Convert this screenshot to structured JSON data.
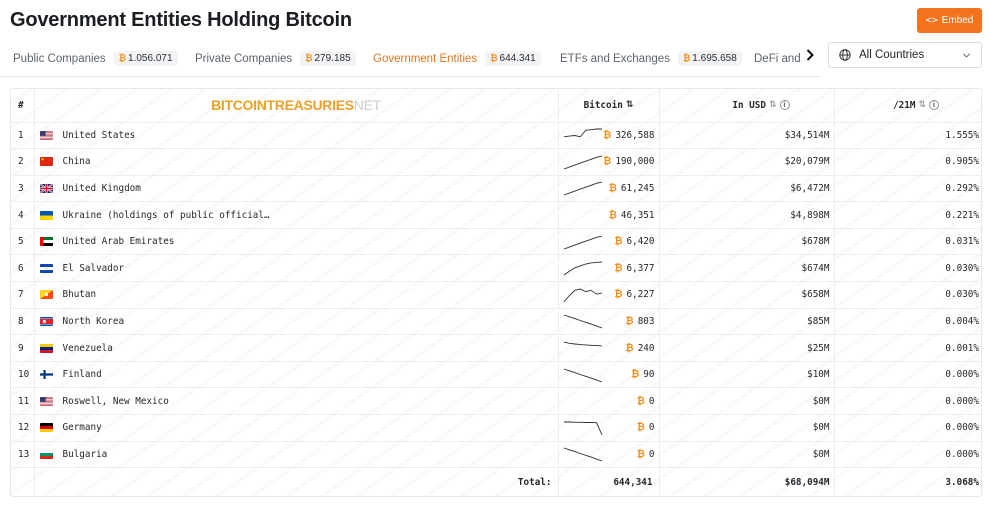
{
  "header": {
    "title": "Government Entities Holding Bitcoin",
    "embed_label": "Embed",
    "embed_icon": "code-icon"
  },
  "tabs": [
    {
      "label": "Public Companies",
      "value": "1.056.071"
    },
    {
      "label": "Private Companies",
      "value": "279.185"
    },
    {
      "label": "Government Entities",
      "value": "644.341",
      "active": true
    },
    {
      "label": "ETFs and Exchanges",
      "value": "1.695.658"
    },
    {
      "label": "DeFi and O",
      "value": ""
    }
  ],
  "country_filter": {
    "selected": "All Countries"
  },
  "table": {
    "logo": {
      "part1": "BITCOIN",
      "part2": "TREASURIES",
      "part3": "NET"
    },
    "columns": {
      "rank": "#",
      "bitcoin": "Bitcoin",
      "usd": "In USD",
      "share": "/21M"
    },
    "rows": [
      {
        "rank": "1",
        "name": "United States",
        "flag": "us",
        "btc": "326,588",
        "usd": "$34,514M",
        "share": "1.555%",
        "trend": [
          4,
          4.5,
          5,
          4,
          9,
          9.5,
          10,
          10
        ],
        "colors": [
          "#b22234",
          "#ffffff",
          "#3c3b6e"
        ]
      },
      {
        "rank": "2",
        "name": "China",
        "flag": "cn",
        "btc": "190,000",
        "usd": "$20,079M",
        "share": "0.905%",
        "trend": [
          0,
          1.5,
          3,
          4.5,
          6,
          7.5,
          9,
          10
        ],
        "colors": [
          "#de2910",
          "#ffde00"
        ]
      },
      {
        "rank": "3",
        "name": "United Kingdom",
        "flag": "gb",
        "btc": "61,245",
        "usd": "$6,472M",
        "share": "0.292%",
        "trend": [
          0,
          1.5,
          3,
          4.5,
          6,
          7.5,
          9,
          10
        ],
        "colors": [
          "#012169",
          "#ffffff",
          "#c8102e"
        ]
      },
      {
        "rank": "4",
        "name": "Ukraine (holdings of public official…",
        "flag": "ua",
        "btc": "46,351",
        "usd": "$4,898M",
        "share": "0.221%",
        "trend": [],
        "colors": [
          "#0057b7",
          "#ffd700"
        ]
      },
      {
        "rank": "5",
        "name": "United Arab Emirates",
        "flag": "ae",
        "btc": "6,420",
        "usd": "$678M",
        "share": "0.031%",
        "trend": [
          0,
          1.5,
          3,
          4.5,
          6,
          7.5,
          9,
          10
        ],
        "colors": [
          "#00732f",
          "#ffffff",
          "#000000",
          "#ff0000"
        ]
      },
      {
        "rank": "6",
        "name": "El Salvador",
        "flag": "sv",
        "btc": "6,377",
        "usd": "$674M",
        "share": "0.030%",
        "trend": [
          0,
          3,
          5.5,
          7,
          8.5,
          9.3,
          9.7,
          10
        ],
        "colors": [
          "#0f47af",
          "#ffffff"
        ]
      },
      {
        "rank": "7",
        "name": "Bhutan",
        "flag": "bt",
        "btc": "6,227",
        "usd": "$658M",
        "share": "0.030%",
        "trend": [
          0,
          5,
          9,
          10,
          8,
          9,
          6,
          7
        ],
        "colors": [
          "#ffd520",
          "#ff4e12"
        ]
      },
      {
        "rank": "8",
        "name": "North Korea",
        "flag": "kp",
        "btc": "803",
        "usd": "$85M",
        "share": "0.004%",
        "trend": [
          10,
          8.6,
          7.2,
          5.8,
          4.4,
          3,
          1.5,
          0
        ],
        "colors": [
          "#024fa2",
          "#ed1c27",
          "#ffffff"
        ]
      },
      {
        "rank": "9",
        "name": "Venezuela",
        "flag": "ve",
        "btc": "240",
        "usd": "$25M",
        "share": "0.001%",
        "trend": [
          10,
          9,
          8.5,
          8,
          7.8,
          7.5,
          7.2,
          7
        ],
        "colors": [
          "#ffcc00",
          "#00247d",
          "#cf142b"
        ]
      },
      {
        "rank": "10",
        "name": "Finland",
        "flag": "fi",
        "btc": "90",
        "usd": "$10M",
        "share": "0.000%",
        "trend": [
          10,
          8.6,
          7.2,
          5.8,
          4.4,
          3,
          1.5,
          0
        ],
        "colors": [
          "#ffffff",
          "#003580"
        ]
      },
      {
        "rank": "11",
        "name": "Roswell, New Mexico",
        "flag": "us",
        "btc": "0",
        "usd": "$0M",
        "share": "0.000%",
        "trend": [],
        "colors": [
          "#b22234",
          "#ffffff",
          "#3c3b6e"
        ]
      },
      {
        "rank": "12",
        "name": "Germany",
        "flag": "de",
        "btc": "0",
        "usd": "$0M",
        "share": "0.000%",
        "trend": [
          10,
          10,
          9.8,
          9.8,
          9.6,
          9.6,
          9.5,
          0
        ],
        "colors": [
          "#000000",
          "#dd0000",
          "#ffce00"
        ]
      },
      {
        "rank": "13",
        "name": "Bulgaria",
        "flag": "bg",
        "btc": "0",
        "usd": "$0M",
        "share": "0.000%",
        "trend": [
          10,
          8.6,
          7.2,
          5.8,
          4.4,
          3,
          1.5,
          0
        ],
        "colors": [
          "#ffffff",
          "#00966e",
          "#d62612"
        ]
      }
    ],
    "total": {
      "label": "Total:",
      "btc": "644,341",
      "usd": "$68,094M",
      "share": "3.068%"
    }
  }
}
